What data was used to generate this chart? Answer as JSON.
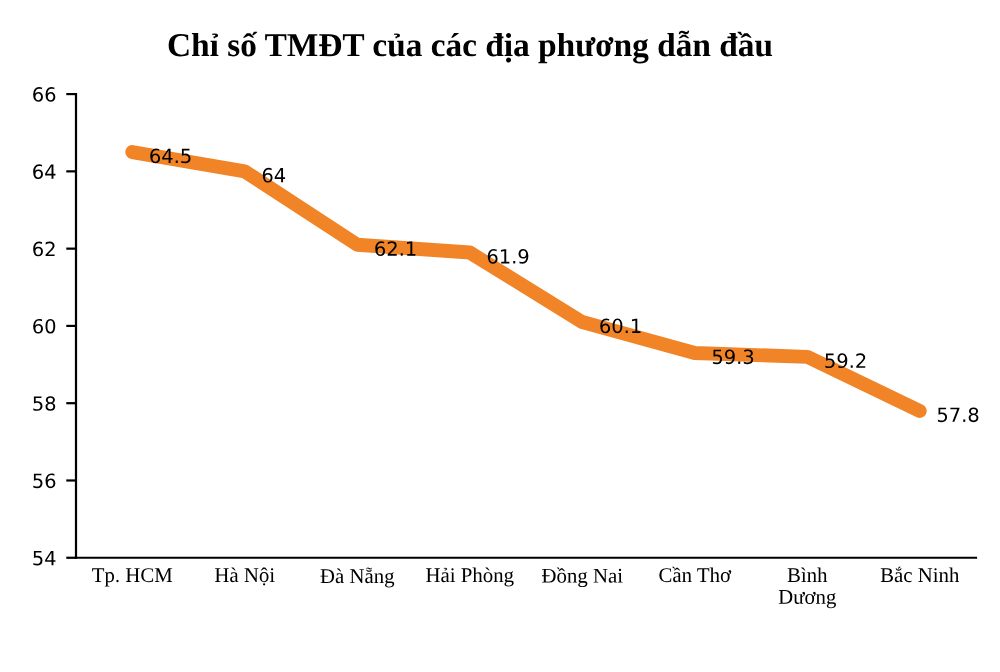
{
  "chart_data": {
    "type": "line",
    "title": "Chỉ số TMĐT của các địa phương dẫn đầu",
    "categories": [
      "Tp. HCM",
      "Hà Nội",
      "Đà Nẵng",
      "Hải Phòng",
      "Đồng Nai",
      "Cần Thơ",
      "Bình\nDương",
      "Bắc Ninh"
    ],
    "series": [
      {
        "color": "#f28428",
        "values": [
          64.5,
          64,
          62.1,
          61.9,
          60.1,
          59.3,
          59.2,
          57.8
        ]
      }
    ],
    "ylim": [
      54,
      66
    ],
    "yticks": [
      54,
      56,
      58,
      60,
      62,
      64,
      66
    ],
    "data_labels": true,
    "grid": false,
    "legend": false,
    "marker": "none",
    "line_style": "solid"
  }
}
